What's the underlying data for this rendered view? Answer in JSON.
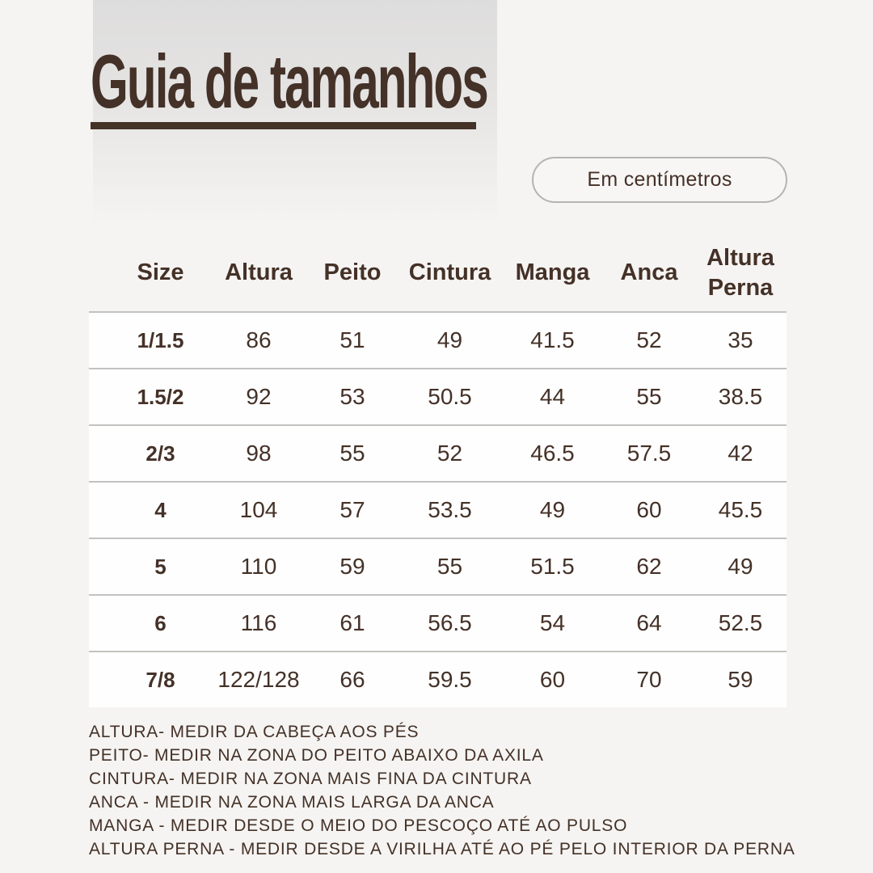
{
  "page": {
    "title": "Guia de tamanhos",
    "unit_badge": "Em centímetros"
  },
  "colors": {
    "accent_brown": "#443127",
    "page_background": "#f5f4f2",
    "panel_gradient_top": "#dedddd",
    "row_background": "#fefefe",
    "separator_gray": "#c3c2c0",
    "badge_border": "#b5b4b2"
  },
  "table": {
    "headers": [
      "Size",
      "Altura",
      "Peito",
      "Cintura",
      "Manga",
      "Anca",
      "Altura Perna"
    ],
    "rows": [
      [
        "1/1.5",
        "86",
        "51",
        "49",
        "41.5",
        "52",
        "35"
      ],
      [
        "1.5/2",
        "92",
        "53",
        "50.5",
        "44",
        "55",
        "38.5"
      ],
      [
        "2/3",
        "98",
        "55",
        "52",
        "46.5",
        "57.5",
        "42"
      ],
      [
        "4",
        "104",
        "57",
        "53.5",
        "49",
        "60",
        "45.5"
      ],
      [
        "5",
        "110",
        "59",
        "55",
        "51.5",
        "62",
        "49"
      ],
      [
        "6",
        "116",
        "61",
        "56.5",
        "54",
        "64",
        "52.5"
      ],
      [
        "7/8",
        "122/128",
        "66",
        "59.5",
        "60",
        "70",
        "59"
      ]
    ]
  },
  "notes": [
    "ALTURA- MEDIR DA CABEÇA AOS PÉS",
    "PEITO- MEDIR NA ZONA DO PEITO ABAIXO DA AXILA",
    "CINTURA- MEDIR NA ZONA MAIS FINA DA CINTURA",
    "ANCA - MEDIR NA ZONA MAIS LARGA DA ANCA",
    "MANGA - MEDIR DESDE O MEIO DO PESCOÇO ATÉ AO PULSO",
    "ALTURA PERNA - MEDIR DESDE A VIRILHA ATÉ AO PÉ PELO INTERIOR DA PERNA"
  ]
}
